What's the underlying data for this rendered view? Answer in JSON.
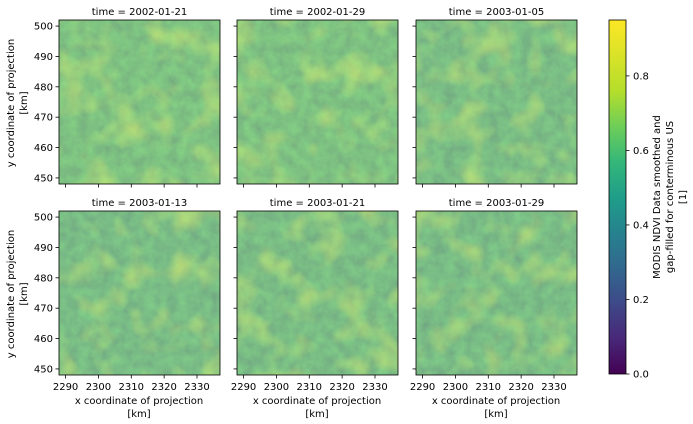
{
  "chart_data": {
    "type": "heatmap",
    "layout": "facet-grid 2x3",
    "colormap": "viridis",
    "vmin": 0.0,
    "vmax": 0.95,
    "xlim": [
      2288,
      2337
    ],
    "ylim": [
      448,
      502
    ],
    "x_ticks": [
      2290,
      2300,
      2310,
      2320,
      2330
    ],
    "y_ticks": [
      450,
      460,
      470,
      480,
      490,
      500
    ],
    "x_tick_labels": [
      "2290",
      "2300",
      "2310",
      "2320",
      "2330"
    ],
    "y_tick_labels": [
      "450",
      "460",
      "470",
      "480",
      "490",
      "500"
    ],
    "xlabel_line1": "x coordinate of projection",
    "xlabel_line2": "[km]",
    "ylabel_line1": "y coordinate of projection",
    "ylabel_line2": "[km]",
    "colorbar": {
      "ticks": [
        0.0,
        0.2,
        0.4,
        0.6,
        0.8
      ],
      "tick_labels": [
        "0.0",
        "0.2",
        "0.4",
        "0.6",
        "0.8"
      ],
      "label_line1": "MODIS NDVI Data smoothed and",
      "label_line2": "gap-filled for conterminous US",
      "label_line3": "[1]"
    },
    "panels": [
      {
        "title": "time = 2002-01-21",
        "mean_ndvi": 0.62
      },
      {
        "title": "time = 2002-01-29",
        "mean_ndvi": 0.62
      },
      {
        "title": "time = 2003-01-05",
        "mean_ndvi": 0.58
      },
      {
        "title": "time = 2003-01-13",
        "mean_ndvi": 0.57
      },
      {
        "title": "time = 2003-01-21",
        "mean_ndvi": 0.58
      },
      {
        "title": "time = 2003-01-29",
        "mean_ndvi": 0.57
      }
    ]
  }
}
